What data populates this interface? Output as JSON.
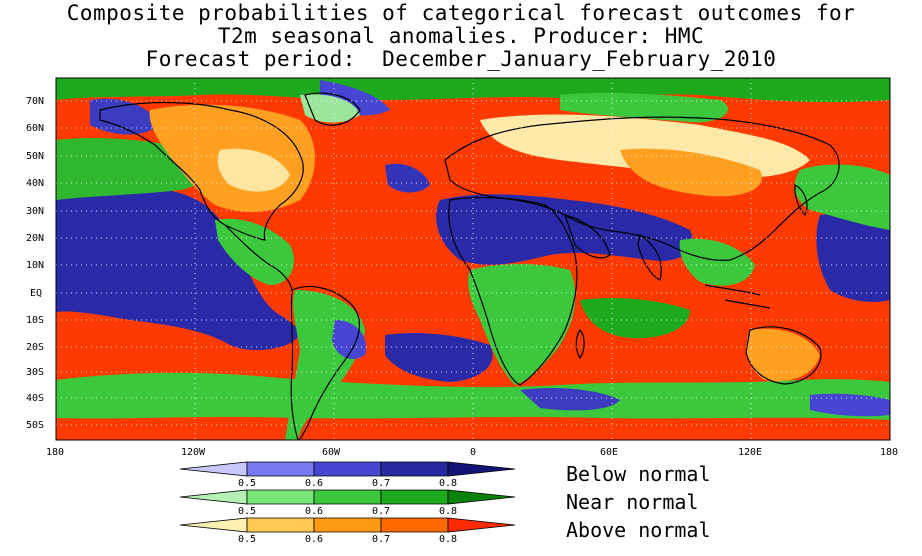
{
  "title": {
    "line1": "Composite probabilities of categorical forecast outcomes for",
    "line2": "T2m seasonal anomalies. Producer: HMC",
    "line3": "Forecast period:  December_January_February_2010"
  },
  "axes": {
    "lat_labels": [
      "70N",
      "60N",
      "50N",
      "40N",
      "30N",
      "20N",
      "10N",
      "EQ",
      "10S",
      "20S",
      "30S",
      "40S",
      "50S"
    ],
    "lon_labels": [
      "180",
      "120W",
      "60W",
      "0",
      "60E",
      "120E",
      "180"
    ]
  },
  "legend": {
    "below": {
      "label": "Below normal",
      "ticks": [
        "0.5",
        "0.6",
        "0.7",
        "0.8"
      ],
      "colors": [
        "#c8c8ff",
        "#7878f0",
        "#4646d2",
        "#2828a0",
        "#141478"
      ]
    },
    "near": {
      "label": "Near normal",
      "ticks": [
        "0.5",
        "0.6",
        "0.7",
        "0.8"
      ],
      "colors": [
        "#b4f0b4",
        "#78e678",
        "#3cc83c",
        "#1eaa1e",
        "#0a820a"
      ]
    },
    "above": {
      "label": "Above normal",
      "ticks": [
        "0.5",
        "0.6",
        "0.7",
        "0.8"
      ],
      "colors": [
        "#fff0b4",
        "#ffc850",
        "#ff9a14",
        "#ff6a00",
        "#ff2a00"
      ]
    }
  }
}
